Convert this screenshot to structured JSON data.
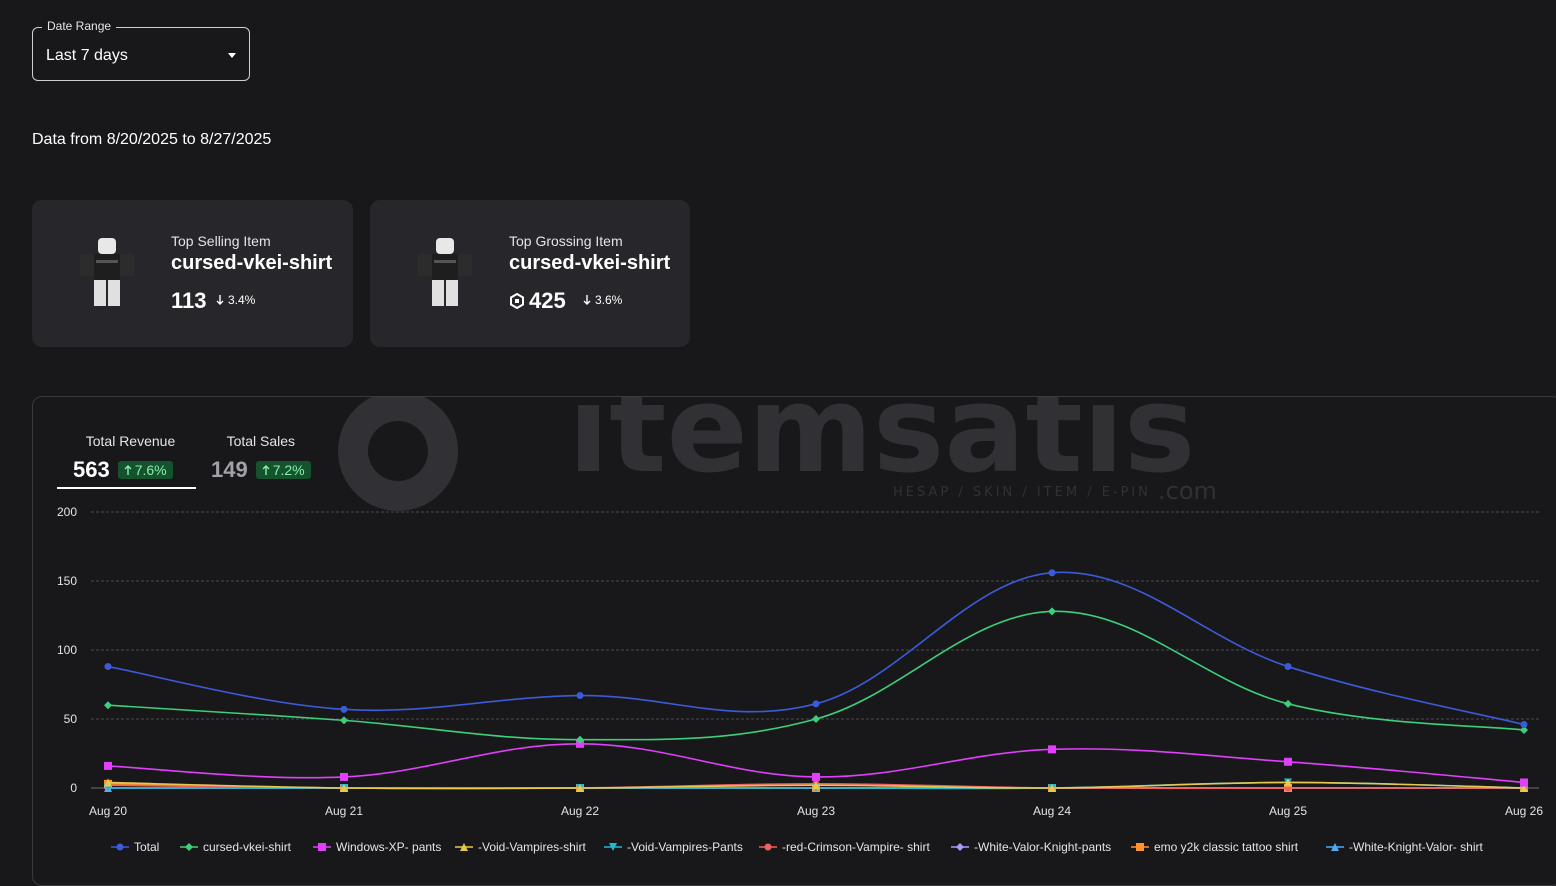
{
  "filter": {
    "label": "Date Range",
    "value": "Last 7 days"
  },
  "data_range_text": "Data from 8/20/2025 to 8/27/2025",
  "cards": {
    "top_selling": {
      "label": "Top Selling Item",
      "name": "cursed-vkei-shirt",
      "value": "113",
      "delta": "3.4%",
      "direction": "down"
    },
    "top_grossing": {
      "label": "Top Grossing Item",
      "name": "cursed-vkei-shirt",
      "value": "425",
      "delta": "3.6%",
      "direction": "down",
      "icon": "robux-icon"
    }
  },
  "watermark": {
    "brand": "itemsatıs",
    "tagline": "HESAP / SKIN / ITEM / E-PIN",
    "suffix": ".com"
  },
  "tabs": [
    {
      "label": "Total Revenue",
      "value": "563",
      "delta": "7.6%",
      "direction": "up",
      "selected": true
    },
    {
      "label": "Total Sales",
      "value": "149",
      "delta": "7.2%",
      "direction": "up",
      "selected": false
    }
  ],
  "colors": {
    "background": "#18181b",
    "card": "#27272b",
    "positive": "#86efac",
    "positive_bg": "#14532d"
  },
  "chart_data": {
    "type": "line",
    "categories": [
      "Aug 20",
      "Aug 21",
      "Aug 22",
      "Aug 23",
      "Aug 24",
      "Aug 25",
      "Aug 26"
    ],
    "ylim": [
      0,
      200
    ],
    "yticks": [
      0,
      50,
      100,
      150,
      200
    ],
    "grid": true,
    "legend_position": "bottom",
    "series": [
      {
        "name": "Total",
        "color": "#3b5bdb",
        "marker": "circle",
        "values": [
          88,
          57,
          67,
          61,
          156,
          88,
          46
        ]
      },
      {
        "name": "cursed-vkei-shirt",
        "color": "#3ecf7a",
        "marker": "diamond",
        "values": [
          60,
          49,
          35,
          50,
          128,
          61,
          42
        ]
      },
      {
        "name": "Windows-XP- pants",
        "color": "#e040fb",
        "marker": "square",
        "values": [
          16,
          8,
          32,
          8,
          28,
          19,
          4
        ]
      },
      {
        "name": "-Void-Vampires-shirt",
        "color": "#e6c84d",
        "marker": "triangle",
        "values": [
          4,
          0,
          0,
          2,
          0,
          4,
          0
        ]
      },
      {
        "name": "-Void-Vampires-Pants",
        "color": "#22b8cf",
        "marker": "triangle-down",
        "values": [
          0,
          0,
          0,
          0,
          0,
          4,
          0
        ]
      },
      {
        "name": "-red-Crimson-Vampire- shirt",
        "color": "#f06060",
        "marker": "circle",
        "values": [
          2,
          0,
          0,
          3,
          0,
          0,
          0
        ]
      },
      {
        "name": "-White-Valor-Knight-pants",
        "color": "#b197fc",
        "marker": "diamond",
        "values": [
          0,
          0,
          0,
          0,
          0,
          0,
          0
        ]
      },
      {
        "name": "emo y2k classic tattoo shirt",
        "color": "#ff922b",
        "marker": "square",
        "values": [
          3,
          0,
          0,
          0,
          0,
          0,
          0
        ]
      },
      {
        "name": "-White-Knight-Valor- shirt",
        "color": "#4dabf7",
        "marker": "triangle",
        "values": [
          0,
          0,
          0,
          0,
          0,
          0,
          0
        ]
      }
    ]
  }
}
